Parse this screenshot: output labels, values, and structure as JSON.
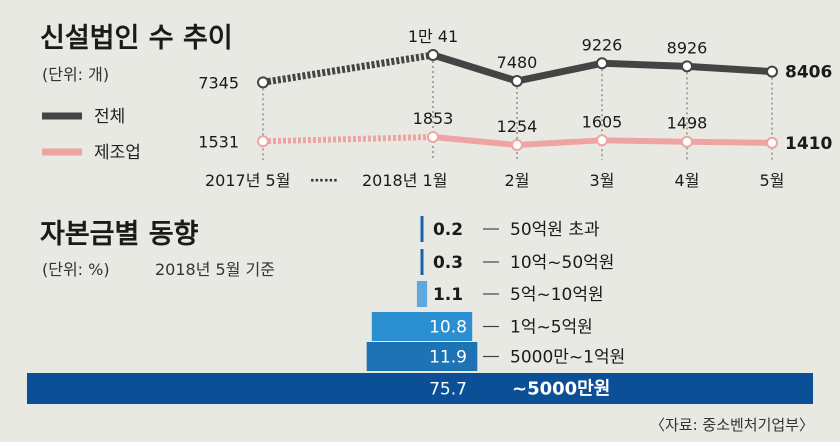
{
  "chart_data": [
    {
      "type": "line",
      "title": "신설법인 수 추이",
      "unit": "(단위: 개)",
      "x": [
        "2017년 5월",
        "2018년 1월",
        "2월",
        "3월",
        "4월",
        "5월"
      ],
      "gap_marker": "⋯⋯",
      "legend_position": "left",
      "series": [
        {
          "name": "전체",
          "color": "#444444",
          "values": [
            7345,
            10041,
            7480,
            9226,
            8926,
            8406
          ],
          "labels": [
            "7345",
            "1만 41",
            "7480",
            "9226",
            "8926",
            "8406"
          ]
        },
        {
          "name": "제조업",
          "color": "#f0a3a3",
          "values": [
            1531,
            1853,
            1254,
            1605,
            1498,
            1410
          ],
          "labels": [
            "1531",
            "1853",
            "1254",
            "1605",
            "1498",
            "1410"
          ]
        }
      ]
    },
    {
      "type": "bar",
      "title": "자본금별 동향",
      "unit": "(단위: %)",
      "subtitle": "2018년 5월 기준",
      "categories": [
        "50억원 초과",
        "10억~50억원",
        "5억~10억원",
        "1억~5억원",
        "5000만~1억원",
        "~5000만원"
      ],
      "values": [
        0.2,
        0.3,
        1.1,
        10.8,
        11.9,
        75.7
      ],
      "labels": [
        "0.2",
        "0.3",
        "1.1",
        "10.8",
        "11.9",
        "75.7"
      ],
      "colors": [
        "#1f5fa6",
        "#1f5fa6",
        "#5fa8dc",
        "#2b8fd1",
        "#1d73b3",
        "#0b4f97"
      ]
    }
  ],
  "source": "〈자료: 중소벤처기업부〉"
}
